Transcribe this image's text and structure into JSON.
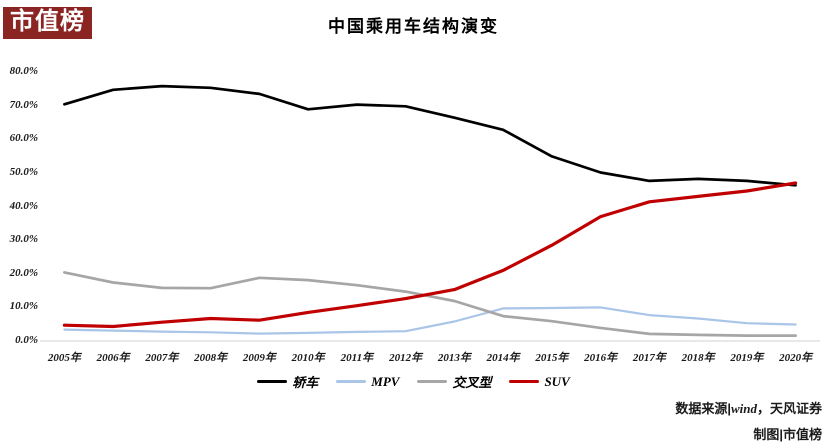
{
  "logo": {
    "text": "市值榜",
    "bg_color": "#8B2522",
    "text_color": "#FFFFFF"
  },
  "title": "中国乘用车结构演变",
  "chart_data": {
    "type": "line",
    "title": "中国乘用车结构演变",
    "categories": [
      "2005年",
      "2006年",
      "2007年",
      "2008年",
      "2009年",
      "2010年",
      "2011年",
      "2012年",
      "2013年",
      "2014年",
      "2015年",
      "2016年",
      "2017年",
      "2018年",
      "2019年",
      "2020年"
    ],
    "unit": "%",
    "ylim": [
      0,
      80
    ],
    "y_tick_step": 10,
    "y_tick_labels": [
      "80.0%",
      "70.0%",
      "60.0%",
      "50.0%",
      "40.0%",
      "30.0%",
      "20.0%",
      "10.0%",
      "0.0%"
    ],
    "grid": "none (baseline only)",
    "axis_line_color": "#D9D9D9",
    "legend_position": "bottom",
    "series": [
      {
        "key": "sedan",
        "name": "轿车",
        "color": "#000000",
        "values": [
          70.4,
          74.7,
          75.8,
          75.3,
          73.5,
          68.9,
          70.3,
          69.8,
          66.4,
          62.8,
          54.9,
          50.1,
          47.6,
          48.2,
          47.6,
          46.3
        ]
      },
      {
        "key": "mpv",
        "name": "MPV",
        "color": "#A9C5E8",
        "values": [
          3.4,
          3.1,
          2.8,
          2.6,
          2.2,
          2.4,
          2.7,
          2.9,
          5.8,
          9.7,
          9.8,
          10.0,
          7.7,
          6.7,
          5.3,
          4.9
        ]
      },
      {
        "key": "crossover",
        "name": "交叉型",
        "color": "#A6A6A6",
        "values": [
          20.4,
          17.4,
          15.8,
          15.7,
          18.8,
          18.1,
          16.6,
          14.7,
          11.9,
          7.4,
          5.9,
          3.9,
          2.1,
          1.8,
          1.6,
          1.6
        ]
      },
      {
        "key": "suv",
        "name": "SUV",
        "color": "#C00000",
        "values": [
          4.7,
          4.3,
          5.6,
          6.7,
          6.2,
          8.5,
          10.5,
          12.6,
          15.3,
          21.0,
          28.5,
          37.0,
          41.4,
          43.0,
          44.6,
          47.0
        ]
      }
    ]
  },
  "footer": {
    "source_prefix": "数据来源|",
    "source_latin": "wind",
    "source_suffix": "，天风证券",
    "credit_line": "制图|市值榜"
  }
}
